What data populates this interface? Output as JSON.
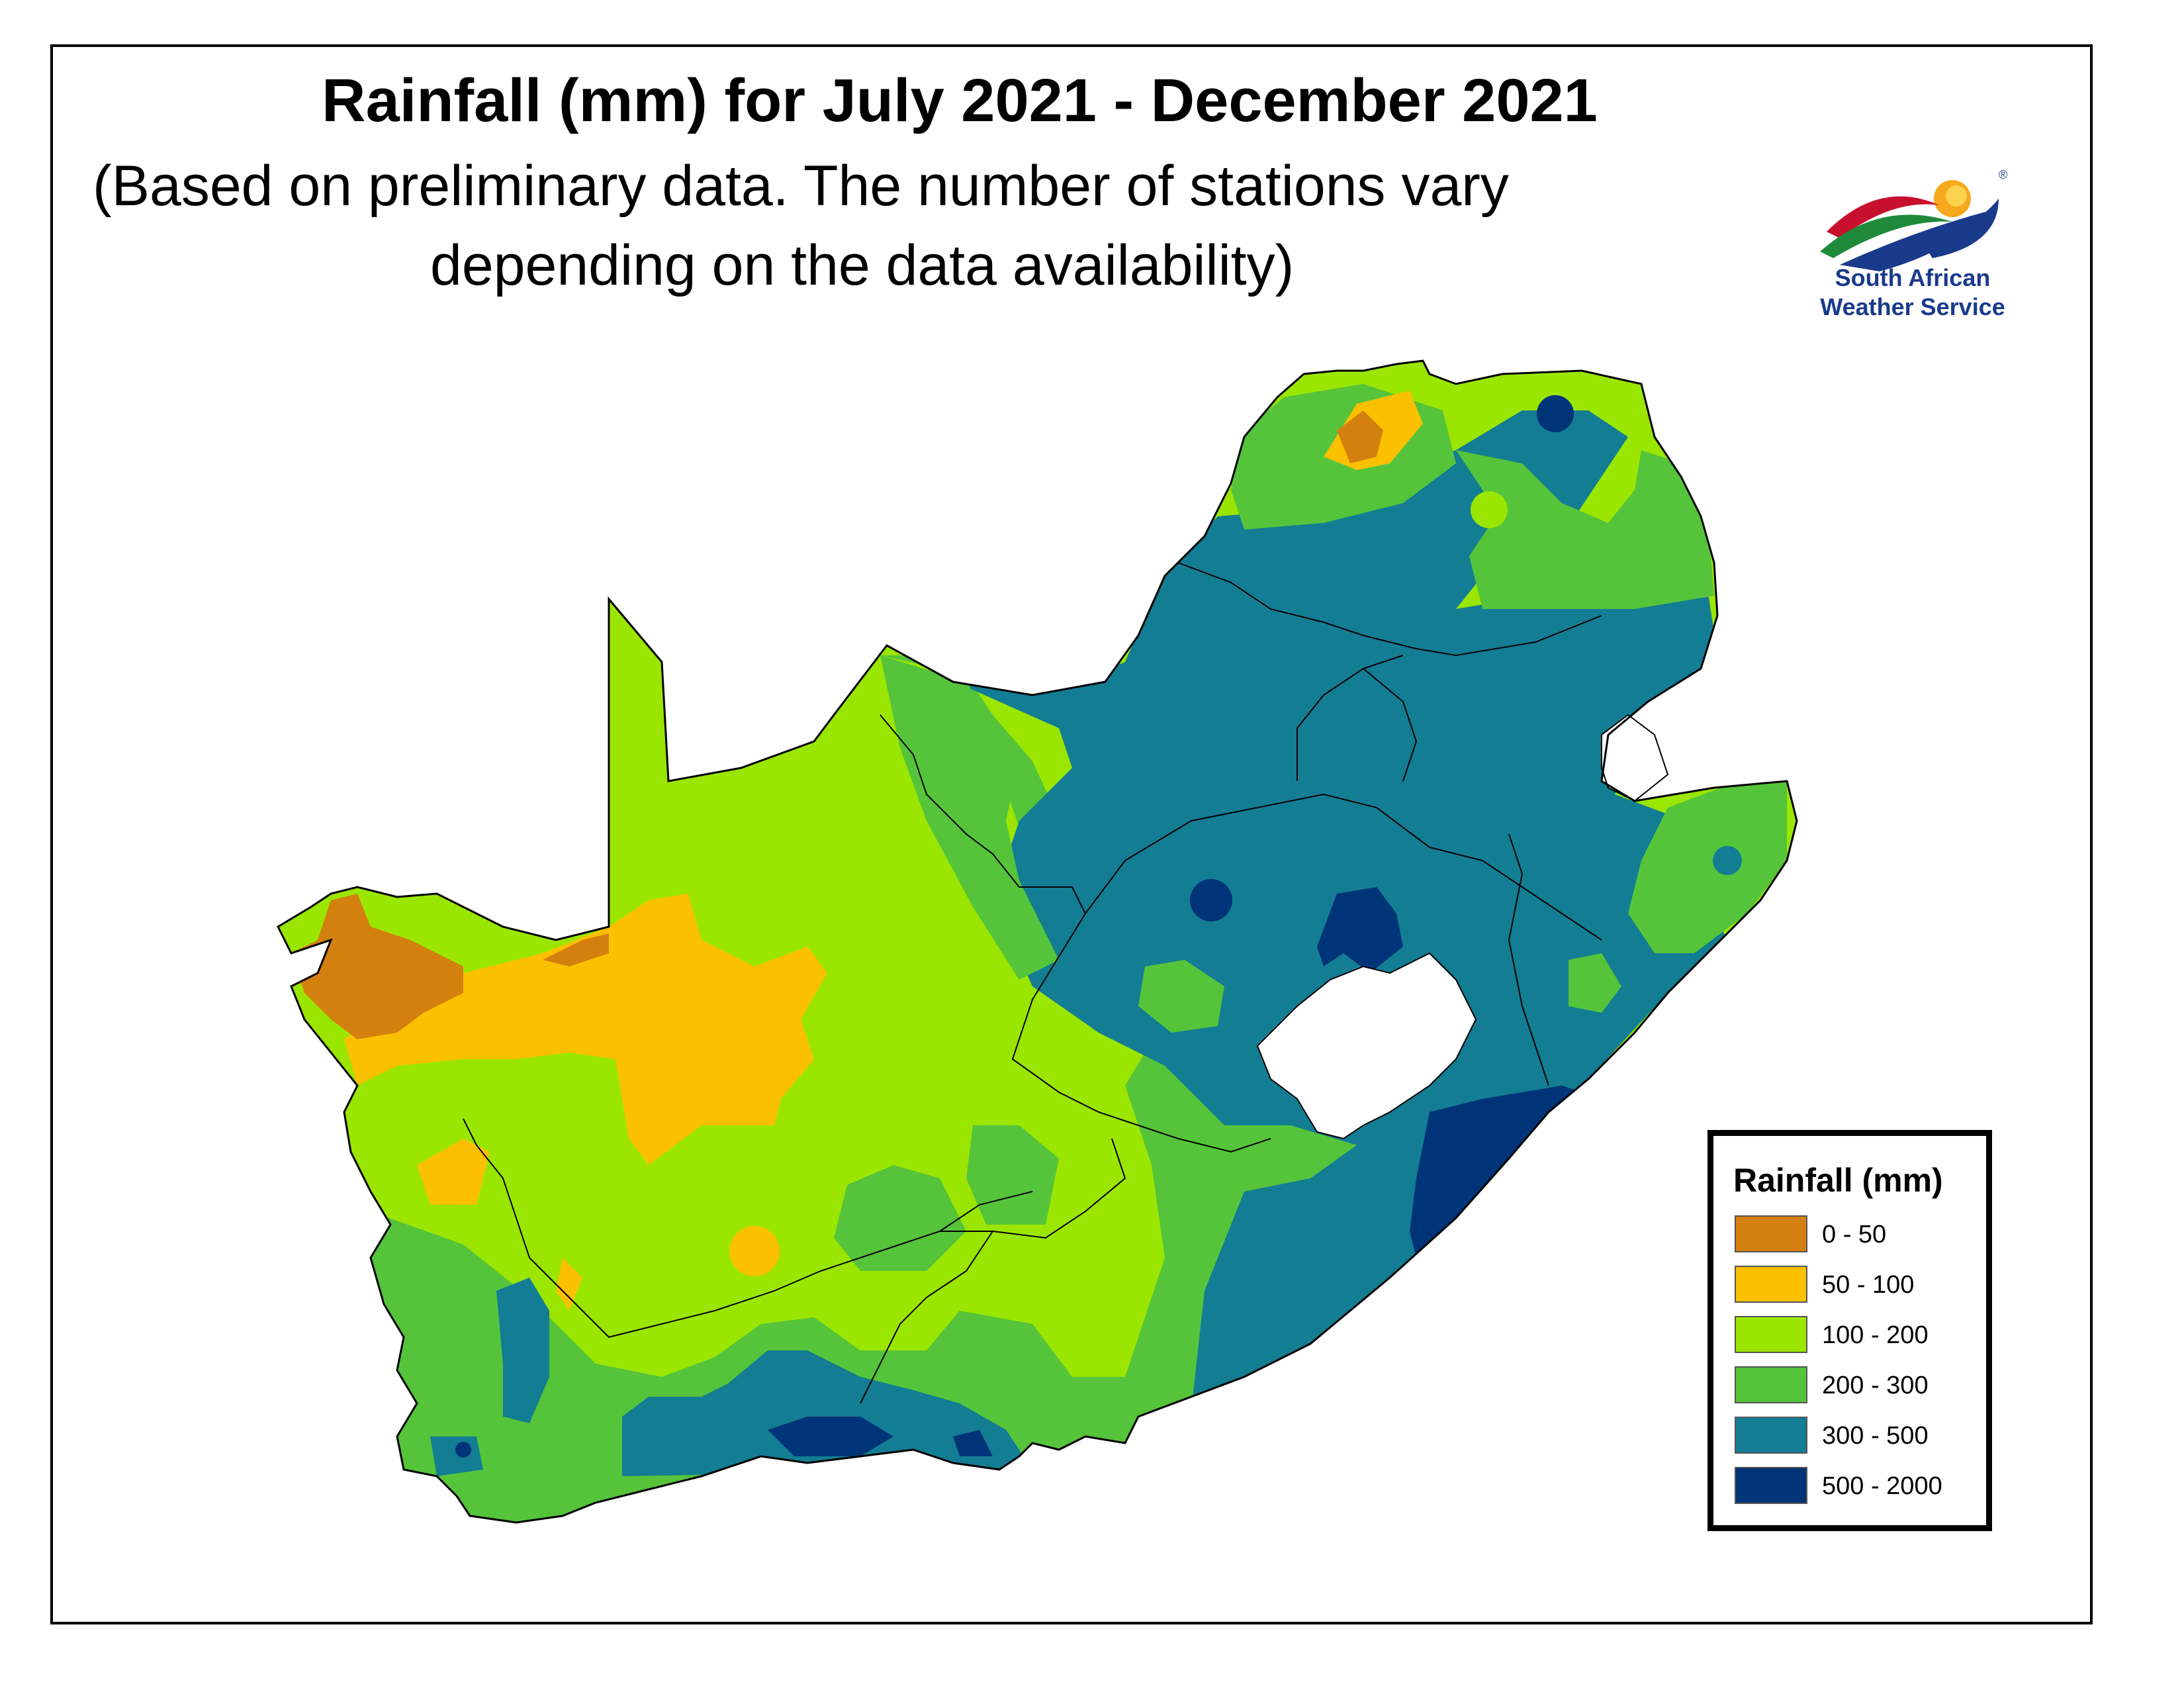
{
  "title": "Rainfall (mm) for July 2021 - December 2021",
  "subtitle_line1": "(Based on preliminary data. The number of stations vary",
  "subtitle_line2": "depending on the data availability)",
  "logo": {
    "line1": "South African",
    "line2": "Weather Service",
    "registered_mark": "®"
  },
  "legend": {
    "title": "Rainfall (mm)",
    "items": [
      {
        "label": "0 - 50",
        "color": "#d4800f"
      },
      {
        "label": "50 - 100",
        "color": "#fbc000"
      },
      {
        "label": "100 - 200",
        "color": "#9be600"
      },
      {
        "label": "200 - 300",
        "color": "#55c43a"
      },
      {
        "label": "300 - 500",
        "color": "#137d93"
      },
      {
        "label": "500 - 2000",
        "color": "#003478"
      }
    ]
  },
  "colors": {
    "c0_50": "#d4800f",
    "c50_100": "#fbc000",
    "c100_200": "#9be600",
    "c200_300": "#55c43a",
    "c300_500": "#137d93",
    "c500_2000": "#003478",
    "border": "#000000"
  }
}
